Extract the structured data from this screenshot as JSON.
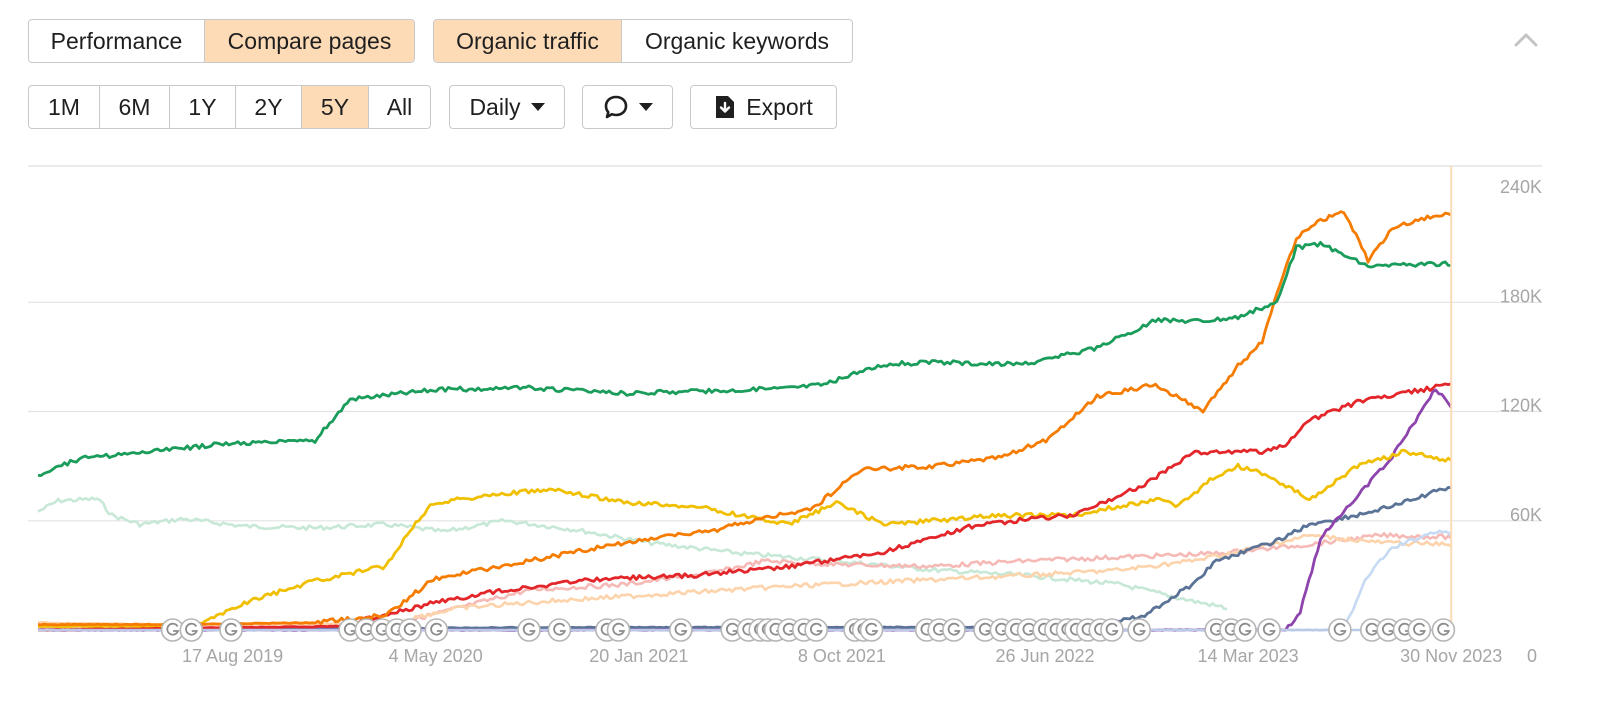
{
  "toolbar": {
    "view_tabs": [
      "Performance",
      "Compare pages"
    ],
    "view_active": 1,
    "metric_tabs": [
      "Organic traffic",
      "Organic keywords"
    ],
    "metric_active": 0,
    "ranges": [
      "1M",
      "6M",
      "1Y",
      "2Y",
      "5Y",
      "All"
    ],
    "range_active": 4,
    "interval": "Daily",
    "export_label": "Export"
  },
  "chart_data": {
    "type": "line",
    "x_tick_labels": [
      "17 Aug 2019",
      "4 May 2020",
      "20 Jan 2021",
      "8 Oct 2021",
      "26 Jun 2022",
      "14 Mar 2023",
      "30 Nov 2023"
    ],
    "x_ticks": [
      "2019-08-17",
      "2020-05-04",
      "2021-01-20",
      "2021-10-08",
      "2022-06-26",
      "2023-03-14",
      "2023-11-30"
    ],
    "x_range": [
      "2018-12-10",
      "2023-12-01"
    ],
    "y_tick_labels": [
      "0",
      "60K",
      "120K",
      "180K",
      "240K"
    ],
    "y_ticks": [
      0,
      60000,
      120000,
      180000,
      240000
    ],
    "ylim": [
      0,
      240000
    ],
    "grid": true,
    "y_axis_side": "right",
    "cursor_date": "2023-11-30",
    "cursor_color": "#fddbb7",
    "series": [
      {
        "color": "#c7e8d6",
        "x": [
          "2018-12-10",
          "2019-01-05",
          "2019-02-25",
          "2019-03-15",
          "2019-04-20",
          "2019-06-15",
          "2019-09-01",
          "2019-12-01",
          "2020-03-01",
          "2020-05-15",
          "2020-08-01",
          "2020-11-01",
          "2021-02-01",
          "2021-06-01",
          "2021-10-01",
          "2022-02-01",
          "2022-06-01",
          "2022-10-01",
          "2023-01-01",
          "2023-02-15"
        ],
        "values": [
          65000,
          71000,
          72000,
          63000,
          58000,
          61000,
          57000,
          56000,
          58000,
          54000,
          60000,
          55000,
          48000,
          42000,
          38000,
          33000,
          30000,
          25000,
          16000,
          12000
        ]
      },
      {
        "color": "#f5b9b6",
        "x": [
          "2018-12-10",
          "2019-08-17",
          "2020-03-01",
          "2020-06-01",
          "2020-09-01",
          "2021-01-01",
          "2021-05-01",
          "2021-07-01",
          "2021-10-01",
          "2022-02-01",
          "2022-06-01",
          "2022-10-01",
          "2023-02-01",
          "2023-06-01",
          "2023-09-01",
          "2023-11-30"
        ],
        "values": [
          1500,
          1500,
          2000,
          12000,
          22000,
          25000,
          32000,
          38000,
          36000,
          35000,
          38000,
          40000,
          42000,
          47000,
          52000,
          51000
        ]
      },
      {
        "color": "#fdd3ab",
        "x": [
          "2018-12-10",
          "2019-06-01",
          "2020-03-01",
          "2020-06-01",
          "2020-10-01",
          "2021-03-01",
          "2021-08-01",
          "2022-01-01",
          "2022-06-01",
          "2022-10-01",
          "2023-01-01",
          "2023-03-01",
          "2023-06-01",
          "2023-09-01",
          "2023-11-30"
        ],
        "values": [
          4000,
          3000,
          3500,
          12000,
          16000,
          20000,
          24000,
          27000,
          30000,
          33000,
          38000,
          43000,
          52000,
          48000,
          47000
        ]
      },
      {
        "color": "#c6dbf3",
        "x": [
          "2018-12-10",
          "2023-06-01",
          "2023-07-15",
          "2023-08-15",
          "2023-09-15",
          "2023-10-15",
          "2023-11-15",
          "2023-11-30"
        ],
        "values": [
          0,
          0,
          0,
          30000,
          45000,
          50000,
          55000,
          52000
        ]
      },
      {
        "color": "#5a7396",
        "x": [
          "2018-12-10",
          "2020-12-01",
          "2022-06-01",
          "2022-09-01",
          "2022-11-01",
          "2023-01-01",
          "2023-02-01",
          "2023-03-01",
          "2023-04-15",
          "2023-06-01",
          "2023-08-01",
          "2023-10-01",
          "2023-11-30"
        ],
        "values": [
          0,
          1500,
          1500,
          2000,
          8000,
          25000,
          38000,
          42000,
          48000,
          58000,
          63000,
          70000,
          79000
        ]
      },
      {
        "color": "#8e44ad",
        "x": [
          "2018-12-10",
          "2023-05-01",
          "2023-05-20",
          "2023-06-15",
          "2023-07-15",
          "2023-08-15",
          "2023-09-15",
          "2023-10-15",
          "2023-11-10",
          "2023-11-30"
        ],
        "values": [
          0,
          0,
          10000,
          50000,
          65000,
          80000,
          95000,
          115000,
          133000,
          122000
        ]
      },
      {
        "color": "#f0c000",
        "x": [
          "2018-12-10",
          "2019-07-01",
          "2019-09-01",
          "2019-12-01",
          "2020-03-01",
          "2020-04-01",
          "2020-05-01",
          "2020-08-01",
          "2020-10-01",
          "2021-01-01",
          "2021-04-01",
          "2021-06-01",
          "2021-08-01",
          "2021-10-01",
          "2021-12-01",
          "2022-02-01",
          "2022-05-01",
          "2022-08-01",
          "2022-10-01",
          "2022-11-20",
          "2022-12-15",
          "2023-02-01",
          "2023-03-01",
          "2023-04-01",
          "2023-06-01",
          "2023-08-01",
          "2023-10-01",
          "2023-11-30"
        ],
        "values": [
          2000,
          2000,
          15000,
          27000,
          35000,
          55000,
          70000,
          75000,
          77000,
          70000,
          68000,
          63000,
          58000,
          70000,
          58000,
          60000,
          63000,
          63000,
          68000,
          72000,
          68000,
          85000,
          90000,
          86000,
          72000,
          90000,
          98000,
          93000
        ]
      },
      {
        "color": "#e3262a",
        "x": [
          "2018-12-10",
          "2020-01-01",
          "2020-05-01",
          "2020-08-01",
          "2020-12-01",
          "2021-04-01",
          "2021-08-01",
          "2021-12-01",
          "2022-04-01",
          "2022-08-01",
          "2022-11-01",
          "2023-01-01",
          "2023-03-01",
          "2023-04-01",
          "2023-05-01",
          "2023-06-01",
          "2023-08-01",
          "2023-11-30"
        ],
        "values": [
          0,
          2000,
          15000,
          22000,
          28000,
          30000,
          35000,
          43000,
          58000,
          63000,
          80000,
          97000,
          98000,
          98000,
          102000,
          115000,
          125000,
          135000
        ]
      },
      {
        "color": "#f57c00",
        "x": [
          "2018-12-10",
          "2019-06-01",
          "2019-12-01",
          "2020-03-01",
          "2020-05-01",
          "2020-09-01",
          "2021-01-01",
          "2021-05-01",
          "2021-06-15",
          "2021-09-01",
          "2021-11-01",
          "2022-02-01",
          "2022-05-01",
          "2022-07-01",
          "2022-09-01",
          "2022-11-15",
          "2023-01-15",
          "2023-03-01",
          "2023-04-01",
          "2023-04-20",
          "2023-05-15",
          "2023-06-15",
          "2023-07-15",
          "2023-08-15",
          "2023-09-15",
          "2023-10-15",
          "2023-11-30"
        ],
        "values": [
          3000,
          3000,
          4000,
          8000,
          28000,
          38000,
          48000,
          55000,
          60000,
          67000,
          88000,
          90000,
          95000,
          105000,
          128000,
          135000,
          120000,
          145000,
          158000,
          185000,
          215000,
          225000,
          230000,
          203000,
          220000,
          225000,
          229000
        ]
      },
      {
        "color": "#1a9c5a",
        "x": [
          "2018-12-10",
          "2019-02-01",
          "2019-05-01",
          "2019-08-01",
          "2019-12-01",
          "2020-01-15",
          "2020-05-01",
          "2020-09-01",
          "2021-01-01",
          "2021-04-01",
          "2021-08-01",
          "2021-09-15",
          "2021-12-01",
          "2022-02-01",
          "2022-06-01",
          "2022-09-01",
          "2022-11-15",
          "2023-01-15",
          "2023-03-01",
          "2023-04-20",
          "2023-05-15",
          "2023-06-15",
          "2023-08-15",
          "2023-11-30"
        ],
        "values": [
          85000,
          94000,
          98000,
          102000,
          104000,
          127000,
          132000,
          133000,
          130000,
          131000,
          133000,
          135000,
          146000,
          147000,
          146000,
          155000,
          170000,
          170000,
          172000,
          180000,
          210000,
          212000,
          200000,
          201000
        ]
      }
    ],
    "google_update_markers": [
      "2019-06-01",
      "2019-06-25",
      "2019-08-15",
      "2020-01-15",
      "2020-02-05",
      "2020-02-25",
      "2020-03-15",
      "2020-04-01",
      "2020-05-05",
      "2020-09-01",
      "2020-10-10",
      "2020-12-10",
      "2020-12-25",
      "2021-03-15",
      "2021-05-20",
      "2021-06-10",
      "2021-06-25",
      "2021-07-05",
      "2021-07-15",
      "2021-08-01",
      "2021-08-20",
      "2021-09-05",
      "2021-10-25",
      "2021-11-05",
      "2021-11-15",
      "2022-01-25",
      "2022-02-10",
      "2022-03-01",
      "2022-04-10",
      "2022-05-01",
      "2022-05-20",
      "2022-06-05",
      "2022-06-25",
      "2022-07-10",
      "2022-07-25",
      "2022-08-05",
      "2022-08-20",
      "2022-09-05",
      "2022-09-20",
      "2022-10-25",
      "2023-02-01",
      "2023-02-20",
      "2023-03-10",
      "2023-04-10",
      "2023-07-10",
      "2023-08-20",
      "2023-09-10",
      "2023-10-01",
      "2023-10-20",
      "2023-11-20"
    ]
  }
}
